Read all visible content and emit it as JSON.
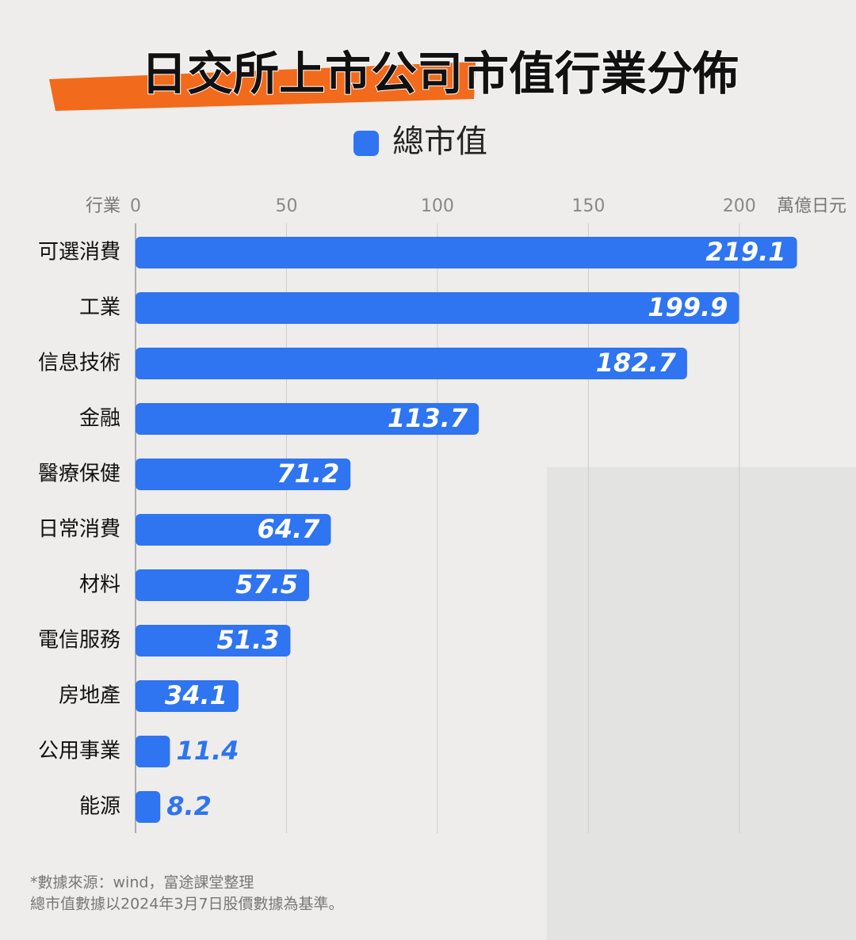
{
  "chart_data": {
    "type": "hbar",
    "title": "日交所上市公司市值行業分佈",
    "y_label": "行業",
    "x_label": "萬億日元",
    "categories": [
      "可選消費",
      "工業",
      "信息技術",
      "金融",
      "醫療保健",
      "日常消費",
      "材料",
      "電信服務",
      "房地產",
      "公用事業",
      "能源"
    ],
    "series": [
      {
        "name": "總市值",
        "color": "#2f74f0",
        "values": [
          219.1,
          199.9,
          182.7,
          113.7,
          71.2,
          64.7,
          57.5,
          51.3,
          34.1,
          11.4,
          8.2
        ]
      }
    ],
    "xlim": [
      0,
      220
    ],
    "xticks": [
      0,
      50,
      100,
      150,
      200
    ],
    "grid": true,
    "notes": [
      "*數據來源：wind，富途課堂整理",
      "總市值數據以2024年3月7日股價數據為基準。"
    ]
  }
}
